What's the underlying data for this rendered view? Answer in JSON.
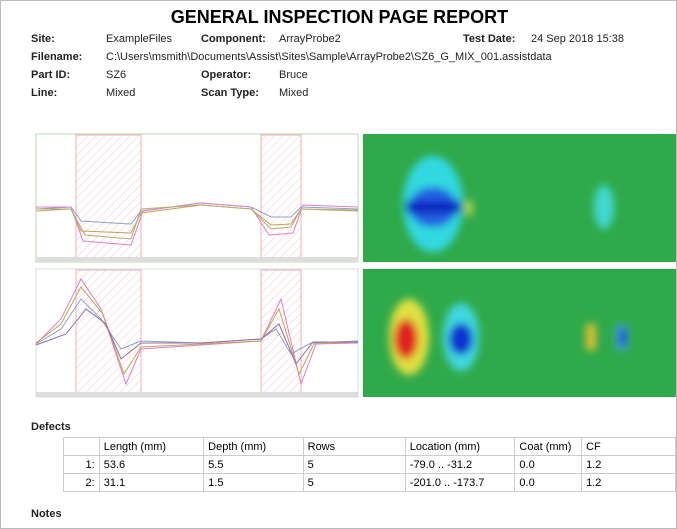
{
  "header": {
    "title": "GENERAL INSPECTION PAGE REPORT"
  },
  "fields": [
    {
      "label": "Site:",
      "value": "ExampleFiles"
    },
    {
      "label": "Component:",
      "value": "ArrayProbe2"
    },
    {
      "label": "Test Date:",
      "value": "24 Sep 2018 15:38"
    },
    {
      "label": "Filename:",
      "value": "C:\\Users\\msmith\\Documents\\Assist\\Sites\\Sample\\ArrayProbe2\\SZ6_G_MIX_001.assistdata"
    },
    {
      "label": "Part ID:",
      "value": "SZ6"
    },
    {
      "label": "Operator:",
      "value": "Bruce"
    },
    {
      "label": "Line:",
      "value": "Mixed"
    },
    {
      "label": "Scan Type:",
      "value": "Mixed"
    }
  ],
  "defects": {
    "heading": "Defects",
    "columns": [
      "Length (mm)",
      "Depth (mm)",
      "Rows",
      "Location (mm)",
      "Coat (mm)",
      "CF"
    ],
    "rows": [
      {
        "label": "1:",
        "cells": [
          "53.6",
          "5.5",
          "5",
          "-79.0 .. -31.2",
          "0.0",
          "1.2"
        ]
      },
      {
        "label": "2:",
        "cells": [
          "31.1",
          "1.5",
          "5",
          "-201.0 .. -173.7",
          "0.0",
          "1.2"
        ]
      }
    ]
  },
  "notes": {
    "heading": "Notes"
  }
}
